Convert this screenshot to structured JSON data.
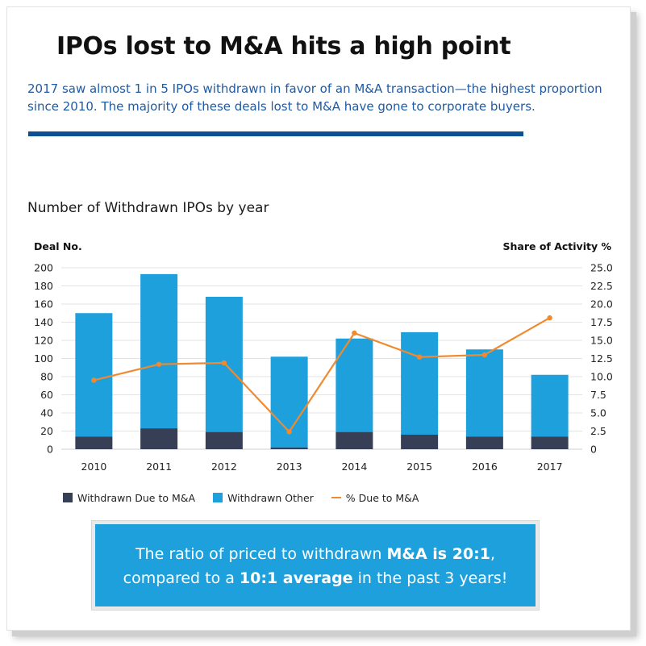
{
  "page": {
    "title": "IPOs lost to M&A hits a high point",
    "subtitle": "2017 saw almost 1 in 5 IPOs withdrawn in favor of an M&A transaction—the highest proportion since 2010. The majority of these deals lost to M&A have gone to corporate buyers."
  },
  "callout": {
    "part1": "The ratio of priced to withdrawn ",
    "bold1": "M&A is 20:1",
    "part2": ",",
    "part3": "compared to a ",
    "bold2": "10:1 average",
    "part4": " in the past 3 years!"
  },
  "colors": {
    "ma": "#363f55",
    "other": "#1ea0dd",
    "line": "#ef8a30",
    "grid": "#e3e3e3"
  },
  "chart_data": {
    "type": "bar",
    "stacked": true,
    "title": "Number of Withdrawn IPOs by year",
    "ylabel_left": "Deal No.",
    "ylabel_right": "Share of Activity %",
    "categories": [
      "2010",
      "2011",
      "2012",
      "2013",
      "2014",
      "2015",
      "2016",
      "2017"
    ],
    "ylim_left": [
      0,
      200
    ],
    "yticks_left": [
      "0",
      "20",
      "40",
      "60",
      "80",
      "100",
      "120",
      "140",
      "160",
      "180",
      "200"
    ],
    "ylim_right": [
      0,
      25
    ],
    "yticks_right": [
      "0",
      "2.5",
      "5.0",
      "7.5",
      "10.0",
      "12.5",
      "15.0",
      "17.5",
      "20.0",
      "22.5",
      "25.0"
    ],
    "series": [
      {
        "name": "Withdrawn Due to M&A",
        "kind": "bar",
        "axis": "left",
        "values": [
          14,
          23,
          19,
          2,
          19,
          16,
          14,
          14
        ]
      },
      {
        "name": "Withdrawn Other",
        "kind": "bar",
        "axis": "left",
        "values": [
          136,
          170,
          149,
          100,
          103,
          113,
          96,
          68
        ]
      },
      {
        "name": "% Due to M&A",
        "kind": "line",
        "axis": "right",
        "values": [
          9.5,
          11.7,
          11.9,
          2.4,
          16.0,
          12.7,
          13.0,
          18.1
        ]
      }
    ],
    "legend": "bottom"
  }
}
